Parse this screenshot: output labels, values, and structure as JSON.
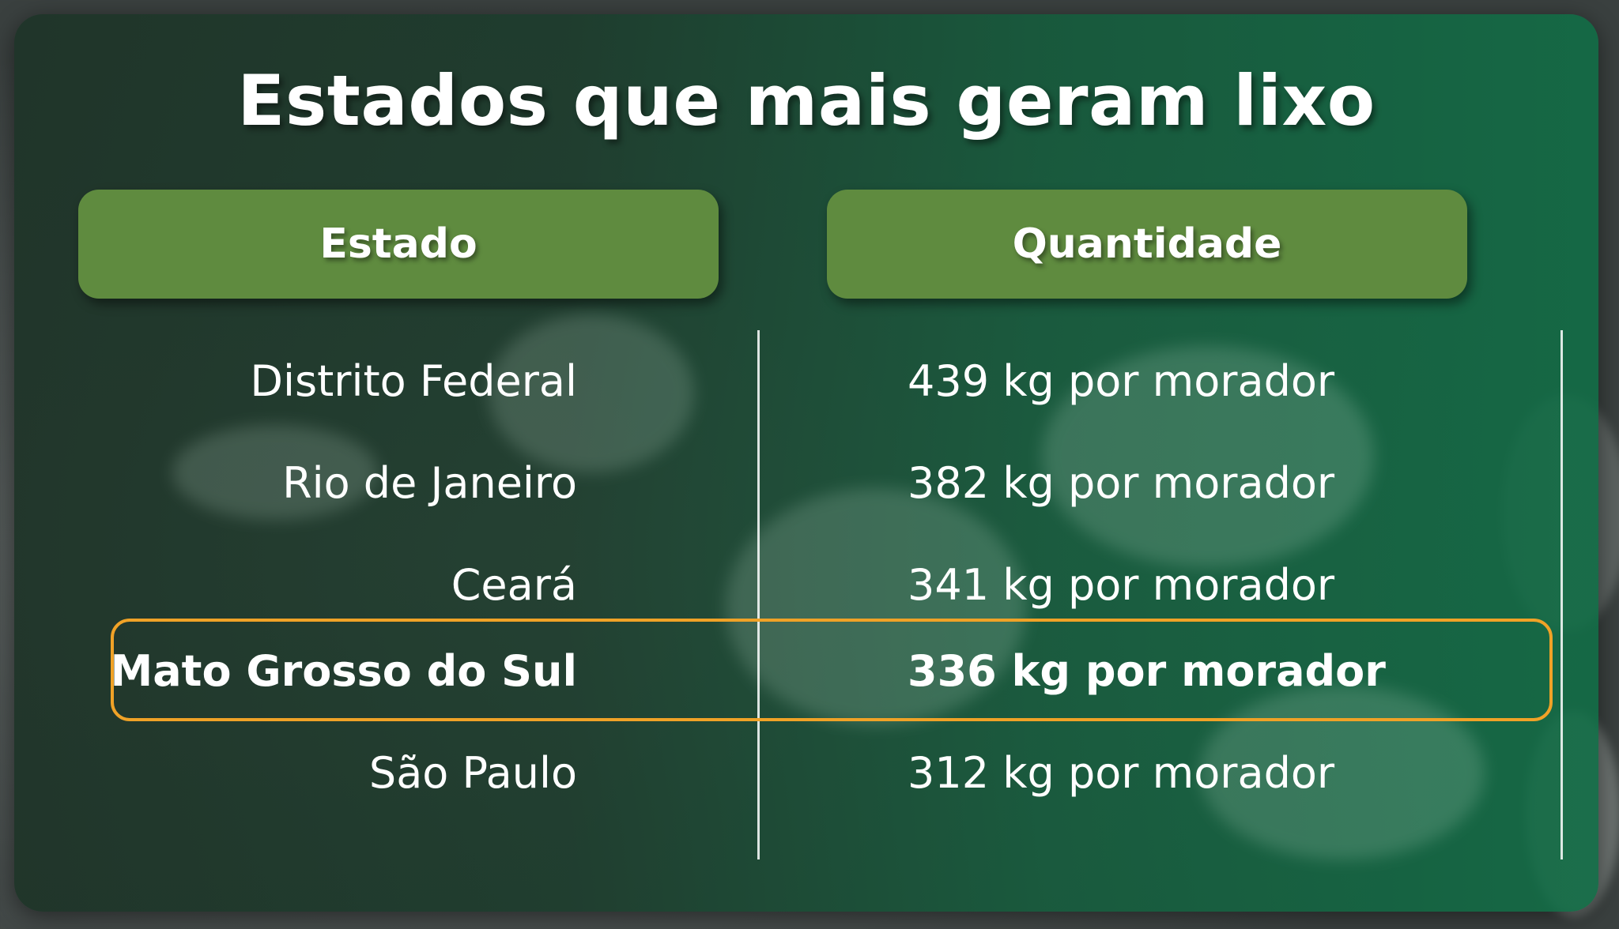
{
  "title": "Estados que mais geram lixo",
  "headers": {
    "state": "Estado",
    "quantity": "Quantidade"
  },
  "rows": [
    {
      "state": "Distrito Federal",
      "quantity": "439 kg por morador",
      "highlighted": false
    },
    {
      "state": "Rio de Janeiro",
      "quantity": "382 kg por morador",
      "highlighted": false
    },
    {
      "state": "Ceará",
      "quantity": "341 kg por morador",
      "highlighted": false
    },
    {
      "state": "Mato Grosso do Sul",
      "quantity": "336 kg por morador",
      "highlighted": true
    },
    {
      "state": "São Paulo",
      "quantity": "312 kg por morador",
      "highlighted": false
    }
  ],
  "colors": {
    "header_bg": "#5f8b3f",
    "highlight_border": "#f0a227",
    "text": "#ffffff"
  }
}
